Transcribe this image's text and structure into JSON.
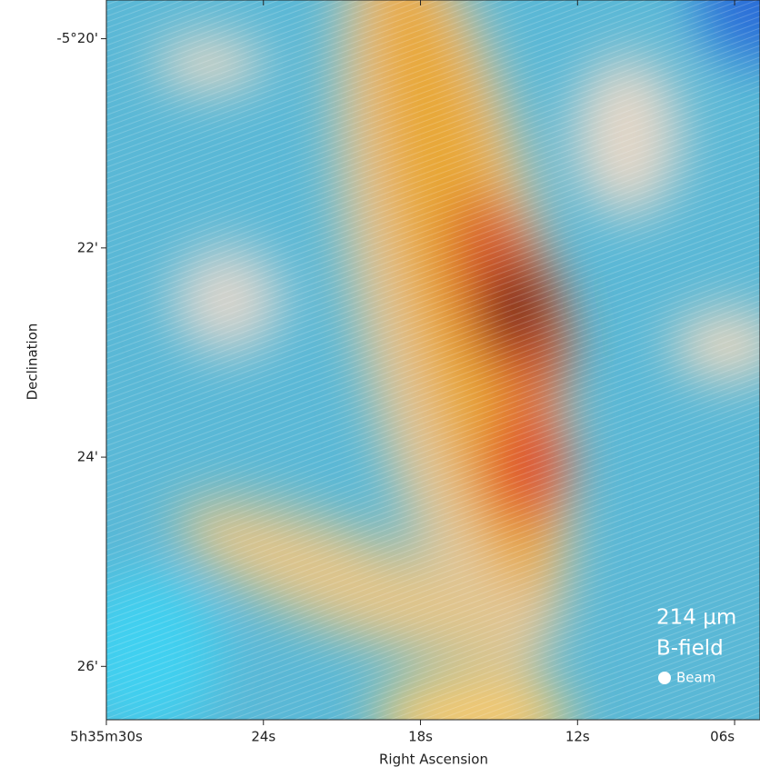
{
  "chart_data": {
    "type": "image",
    "xlabel": "Right Ascension",
    "ylabel": "Declination",
    "xlim": [
      30,
      5.03
    ],
    "ylim": [
      -326.51,
      -319.63
    ],
    "xticks": [
      {
        "value": 30,
        "label": "5h35m30s"
      },
      {
        "value": 24,
        "label": "24s"
      },
      {
        "value": 18,
        "label": "18s"
      },
      {
        "value": 12,
        "label": "12s"
      },
      {
        "value": 6,
        "label": "06s"
      }
    ],
    "yticks": [
      {
        "value": -320,
        "label": "-5°20'"
      },
      {
        "value": -322,
        "label": "22'"
      },
      {
        "value": -324,
        "label": "24'"
      },
      {
        "value": -326,
        "label": "26'"
      }
    ],
    "annotations": [
      "214 μm",
      "B-field",
      "Beam"
    ]
  }
}
